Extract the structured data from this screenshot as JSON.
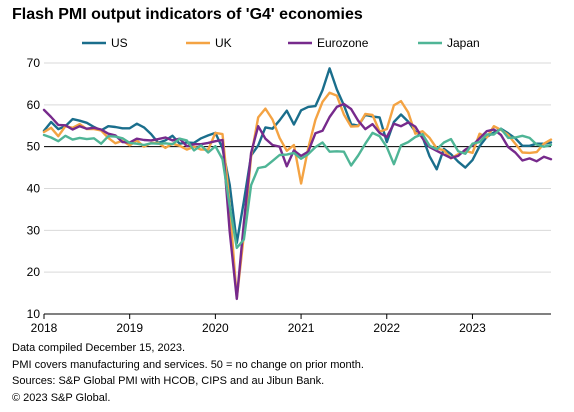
{
  "title": "Flash PMI output indicators of 'G4' economies",
  "notes": [
    "Data compiled December 15, 2023.",
    "PMI covers manufacturing and services. 50 = no change on prior month.",
    "Sources: S&P Global PMI with HCOB, CIPS and au Jibun Bank.",
    "© 2023 S&P Global."
  ],
  "chart_data": {
    "type": "line",
    "title": "Flash PMI output indicators of 'G4' economies",
    "xlabel": "",
    "ylabel": "",
    "xlim": [
      "2018-01",
      "2023-12"
    ],
    "ylim": [
      10,
      70
    ],
    "y_ticks": [
      10,
      20,
      30,
      40,
      50,
      60,
      70
    ],
    "x_ticks": [
      "2018",
      "2019",
      "2020",
      "2021",
      "2022",
      "2023"
    ],
    "grid": "horizontal",
    "reference_line": 50,
    "legend_position": "top",
    "series": [
      {
        "name": "US",
        "color": "#1a6e8c",
        "start": "2018-01",
        "values": [
          53.8,
          55.9,
          54.2,
          54.9,
          56.6,
          56.2,
          55.7,
          54.7,
          53.9,
          54.9,
          54.7,
          54.4,
          54.4,
          55.5,
          54.6,
          53.0,
          50.9,
          51.5,
          52.6,
          50.7,
          51.0,
          50.9,
          52.0,
          52.7,
          53.3,
          49.6,
          40.9,
          27.0,
          37.0,
          47.9,
          50.3,
          54.6,
          54.3,
          56.3,
          58.6,
          55.3,
          58.7,
          59.5,
          59.7,
          63.5,
          68.7,
          63.7,
          59.9,
          55.4,
          55.0,
          57.6,
          57.2,
          57.0,
          51.1,
          55.9,
          57.7,
          56.0,
          53.6,
          52.3,
          47.7,
          44.6,
          49.5,
          48.2,
          46.4,
          45.0,
          46.8,
          50.1,
          52.3,
          53.4,
          54.3,
          53.2,
          52.0,
          50.2,
          50.2,
          50.7,
          50.7,
          51.0
        ]
      },
      {
        "name": "UK",
        "color": "#f4a343",
        "start": "2018-01",
        "values": [
          53.5,
          54.5,
          52.5,
          54.9,
          54.5,
          55.4,
          54.2,
          54.2,
          53.9,
          52.1,
          50.8,
          51.4,
          50.3,
          51.5,
          50.0,
          50.9,
          50.9,
          49.7,
          50.7,
          50.2,
          49.3,
          50.0,
          49.3,
          49.3,
          53.3,
          53.0,
          36.0,
          13.8,
          28.9,
          47.7,
          57.0,
          59.1,
          56.5,
          52.1,
          49.0,
          50.4,
          41.2,
          49.6,
          56.4,
          60.7,
          62.9,
          62.2,
          57.7,
          54.8,
          54.9,
          57.8,
          57.6,
          53.6,
          54.2,
          59.9,
          60.9,
          58.2,
          53.1,
          53.7,
          52.1,
          49.6,
          49.1,
          47.2,
          48.2,
          49.0,
          48.5,
          53.1,
          52.2,
          54.9,
          54.0,
          52.8,
          50.7,
          48.6,
          48.5,
          48.7,
          50.7,
          51.7
        ]
      },
      {
        "name": "Eurozone",
        "color": "#772a8c",
        "start": "2018-01",
        "values": [
          58.8,
          57.1,
          55.2,
          55.1,
          54.1,
          54.9,
          54.3,
          54.5,
          54.1,
          53.1,
          52.7,
          51.1,
          51.0,
          51.9,
          51.6,
          51.5,
          51.8,
          52.2,
          51.5,
          51.9,
          50.1,
          50.6,
          50.6,
          50.9,
          51.3,
          51.6,
          29.7,
          13.6,
          31.9,
          48.5,
          54.9,
          51.9,
          50.4,
          50.0,
          45.3,
          49.1,
          47.8,
          48.8,
          53.2,
          53.8,
          57.1,
          59.5,
          60.2,
          59.0,
          56.2,
          54.2,
          55.4,
          53.3,
          52.3,
          55.5,
          54.9,
          55.8,
          54.8,
          52.0,
          49.9,
          49.0,
          48.1,
          47.3,
          47.8,
          49.3,
          50.3,
          52.0,
          53.7,
          54.1,
          52.8,
          49.9,
          48.6,
          46.7,
          47.2,
          46.5,
          47.6,
          47.0
        ]
      },
      {
        "name": "Japan",
        "color": "#4fb596",
        "start": "2018-01",
        "values": [
          52.8,
          52.2,
          51.3,
          52.6,
          51.7,
          52.1,
          51.8,
          52.0,
          50.7,
          52.5,
          52.4,
          52.0,
          50.9,
          50.7,
          50.4,
          50.8,
          50.7,
          50.8,
          50.6,
          51.9,
          51.5,
          49.1,
          50.3,
          48.6,
          50.1,
          47.0,
          35.8,
          25.8,
          27.8,
          40.8,
          44.9,
          45.2,
          46.6,
          48.0,
          48.1,
          48.5,
          47.1,
          48.2,
          49.9,
          51.0,
          48.8,
          48.9,
          48.8,
          45.5,
          47.9,
          50.7,
          53.3,
          52.5,
          49.9,
          45.8,
          50.3,
          51.1,
          52.3,
          53.0,
          50.2,
          49.4,
          51.0,
          51.8,
          48.9,
          48.3,
          50.7,
          51.1,
          52.9,
          52.9,
          54.3,
          52.1,
          52.2,
          52.6,
          52.1,
          50.5,
          50.0,
          50.4
        ]
      }
    ]
  }
}
